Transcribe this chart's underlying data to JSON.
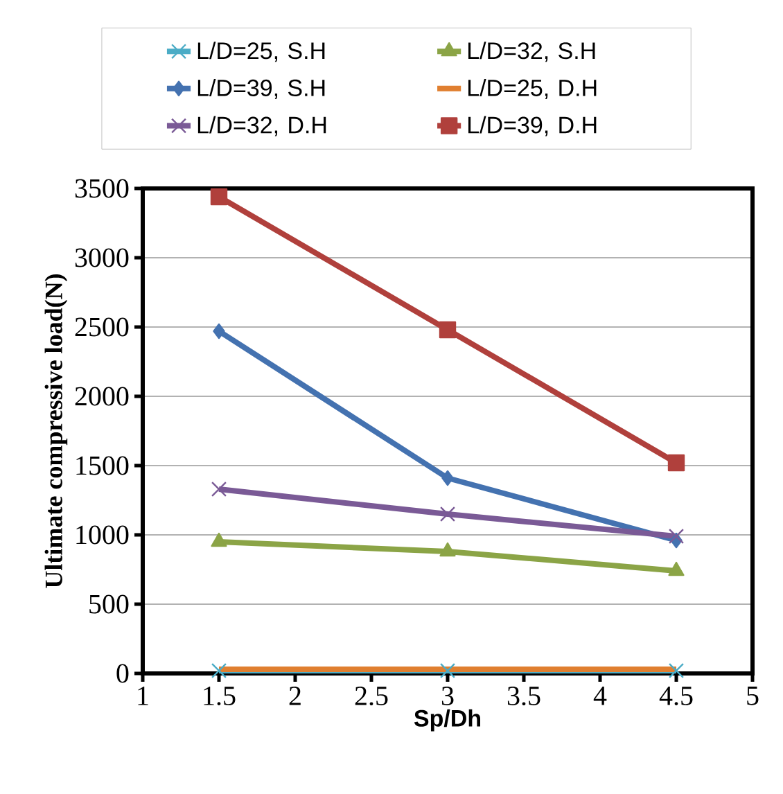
{
  "chart_data": {
    "type": "line",
    "xlabel": "Sp/Dh",
    "ylabel": "Ultimate compressive load(N)",
    "x": [
      1.5,
      3,
      4.5
    ],
    "series": [
      {
        "name": "L/D=25, S.H",
        "color": "#4bacc6",
        "marker": "cross",
        "values": [
          20,
          20,
          20
        ]
      },
      {
        "name": "L/D=32, S.H",
        "color": "#8ba446",
        "marker": "triangle",
        "values": [
          950,
          880,
          740
        ]
      },
      {
        "name": "L/D=39, S.H",
        "color": "#4472b0",
        "marker": "diamond",
        "values": [
          2470,
          1410,
          960
        ]
      },
      {
        "name": "L/D=25, D.H",
        "color": "#e07f30",
        "marker": "none",
        "values": [
          30,
          30,
          30
        ]
      },
      {
        "name": "L/D=32, D.H",
        "color": "#7a5a96",
        "marker": "cross",
        "values": [
          1330,
          1150,
          990
        ]
      },
      {
        "name": "L/D=39, D.H",
        "color": "#b0403c",
        "marker": "square",
        "values": [
          3440,
          2480,
          1520
        ]
      }
    ],
    "xlim": [
      1,
      5
    ],
    "xticks": [
      1,
      1.5,
      2,
      2.5,
      3,
      3.5,
      4,
      4.5,
      5
    ],
    "ylim": [
      0,
      3500
    ],
    "yticks": [
      0,
      500,
      1000,
      1500,
      2000,
      2500,
      3000,
      3500
    ],
    "grid": "y",
    "legend": "top",
    "line_style": "solid"
  }
}
